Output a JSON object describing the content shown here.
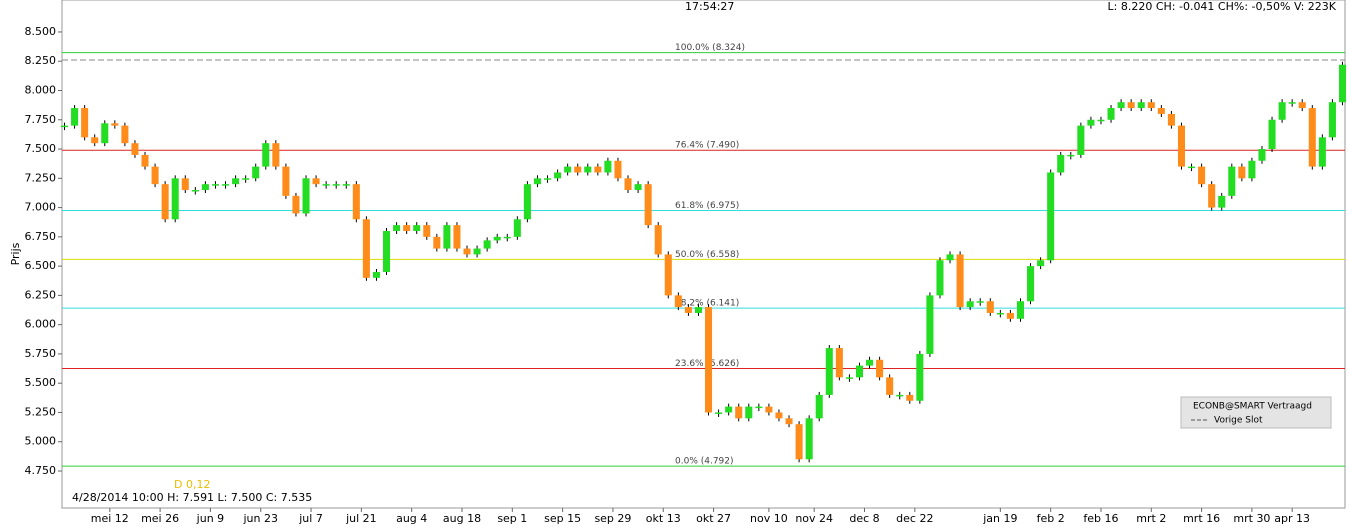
{
  "chart_data": {
    "type": "candlestick",
    "header_time": "17:54:27",
    "header_quote": "L: 8.220 CH: -0.041 CH%: -0,50% V: 223K",
    "y_label": "Prijs",
    "indicator_label": "D 0,12",
    "cursor_info": "4/28/2014 10:00  H: 7.591 L: 7.500 C: 7.535",
    "legend": {
      "title": "ECONB@SMART Vertraagd",
      "entry": "Vorige Slot"
    },
    "up_color": "#22dd22",
    "down_color": "#ff8c1a",
    "xlim": [
      -0.5,
      254.5
    ],
    "ylim": [
      4.434,
      8.773
    ],
    "xticks": [
      {
        "value": 9,
        "label": "mei 12"
      },
      {
        "value": 19,
        "label": "mei 26"
      },
      {
        "value": 29,
        "label": "jun 9"
      },
      {
        "value": 39,
        "label": "jun 23"
      },
      {
        "value": 49,
        "label": "jul 7"
      },
      {
        "value": 59,
        "label": "jul 21"
      },
      {
        "value": 69,
        "label": "aug 4"
      },
      {
        "value": 79,
        "label": "aug 18"
      },
      {
        "value": 89,
        "label": "sep 1"
      },
      {
        "value": 99,
        "label": "sep 15"
      },
      {
        "value": 109,
        "label": "sep 29"
      },
      {
        "value": 119,
        "label": "okt 13"
      },
      {
        "value": 129,
        "label": "okt 27"
      },
      {
        "value": 140,
        "label": "nov 10"
      },
      {
        "value": 149,
        "label": "nov 24"
      },
      {
        "value": 159,
        "label": "dec 8"
      },
      {
        "value": 169,
        "label": "dec 22"
      },
      {
        "value": 186,
        "label": "jan 19"
      },
      {
        "value": 196,
        "label": "feb 2"
      },
      {
        "value": 206,
        "label": "feb 16"
      },
      {
        "value": 216,
        "label": "mrt 2"
      },
      {
        "value": 226,
        "label": "mrt 16"
      },
      {
        "value": 236,
        "label": "mrt 30"
      },
      {
        "value": 244,
        "label": "apr 13"
      }
    ],
    "yticks": [
      {
        "value": 4.75,
        "label": "4.750"
      },
      {
        "value": 5,
        "label": "5.000"
      },
      {
        "value": 5.25,
        "label": "5.250"
      },
      {
        "value": 5.5,
        "label": "5.500"
      },
      {
        "value": 5.75,
        "label": "5.750"
      },
      {
        "value": 6,
        "label": "6.000"
      },
      {
        "value": 6.25,
        "label": "6.250"
      },
      {
        "value": 6.5,
        "label": "6.500"
      },
      {
        "value": 6.75,
        "label": "6.750"
      },
      {
        "value": 7,
        "label": "7.000"
      },
      {
        "value": 7.25,
        "label": "7.250"
      },
      {
        "value": 7.5,
        "label": "7.500"
      },
      {
        "value": 7.75,
        "label": "7.750"
      },
      {
        "value": 8,
        "label": "8.000"
      },
      {
        "value": 8.25,
        "label": "8.250"
      },
      {
        "value": 8.5,
        "label": "8.500"
      }
    ],
    "levels": [
      {
        "value": 8.324,
        "label": "100.0% (8.324)",
        "color": "#33cc33"
      },
      {
        "value": 7.49,
        "label": "76.4% (7.490)",
        "color": "#dd2222"
      },
      {
        "value": 6.975,
        "label": "61.8% (6.975)",
        "color": "#33dddd"
      },
      {
        "value": 6.558,
        "label": "50.0% (6.558)",
        "color": "#dddd00"
      },
      {
        "value": 6.141,
        "label": "38.2% (6.141)",
        "color": "#33dddd"
      },
      {
        "value": 5.626,
        "label": "23.6% (5.626)",
        "color": "#dd2222"
      },
      {
        "value": 4.792,
        "label": "0.0% (4.792)",
        "color": "#33cc33"
      }
    ],
    "previous_close": 8.261,
    "x": [
      0,
      2,
      4,
      6,
      8,
      10,
      12,
      14,
      16,
      18,
      20,
      22,
      24,
      26,
      28,
      30,
      32,
      34,
      36,
      38,
      40,
      42,
      44,
      46,
      48,
      50,
      52,
      54,
      56,
      58,
      60,
      62,
      64,
      66,
      68,
      70,
      72,
      74,
      76,
      78,
      80,
      82,
      84,
      86,
      88,
      90,
      92,
      94,
      96,
      98,
      100,
      102,
      104,
      106,
      108,
      110,
      112,
      114,
      116,
      118,
      120,
      122,
      124,
      126,
      128,
      130,
      132,
      134,
      136,
      138,
      140,
      142,
      144,
      146,
      148,
      150,
      152,
      154,
      156,
      158,
      160,
      162,
      164,
      166,
      168,
      170,
      172,
      174,
      176,
      178,
      180,
      182,
      184,
      186,
      188,
      190,
      192,
      194,
      196,
      198,
      200,
      202,
      204,
      206,
      208,
      210,
      212,
      214,
      216,
      218,
      220,
      222,
      224,
      226,
      228,
      230,
      232,
      234,
      236,
      238,
      240,
      242,
      244,
      246,
      248,
      250,
      252,
      254
    ],
    "values": [
      7.7,
      7.85,
      7.6,
      7.55,
      7.72,
      7.7,
      7.55,
      7.45,
      7.35,
      7.2,
      6.9,
      7.25,
      7.15,
      7.15,
      7.2,
      7.2,
      7.2,
      7.25,
      7.25,
      7.35,
      7.55,
      7.35,
      7.1,
      6.95,
      7.25,
      7.2,
      7.2,
      7.2,
      7.2,
      6.9,
      6.4,
      6.45,
      6.8,
      6.85,
      6.8,
      6.85,
      6.75,
      6.65,
      6.85,
      6.65,
      6.6,
      6.65,
      6.72,
      6.75,
      6.75,
      6.9,
      7.2,
      7.25,
      7.25,
      7.3,
      7.35,
      7.3,
      7.35,
      7.3,
      7.4,
      7.25,
      7.15,
      7.2,
      6.85,
      6.6,
      6.25,
      6.15,
      6.1,
      6.15,
      5.25,
      5.25,
      5.3,
      5.2,
      5.3,
      5.3,
      5.25,
      5.2,
      5.15,
      4.85,
      5.2,
      5.4,
      5.8,
      5.55,
      5.55,
      5.65,
      5.7,
      5.55,
      5.4,
      5.4,
      5.35,
      5.75,
      6.25,
      6.55,
      6.6,
      6.15,
      6.2,
      6.2,
      6.1,
      6.1,
      6.05,
      6.2,
      6.5,
      6.55,
      7.3,
      7.45,
      7.45,
      7.7,
      7.75,
      7.75,
      7.85,
      7.9,
      7.85,
      7.9,
      7.85,
      7.8,
      7.7,
      7.35,
      7.35,
      7.2,
      7.0,
      7.1,
      7.35,
      7.25,
      7.4,
      7.5,
      7.75,
      7.9,
      7.9,
      7.85,
      7.35,
      7.6,
      7.9,
      8.22
    ]
  }
}
